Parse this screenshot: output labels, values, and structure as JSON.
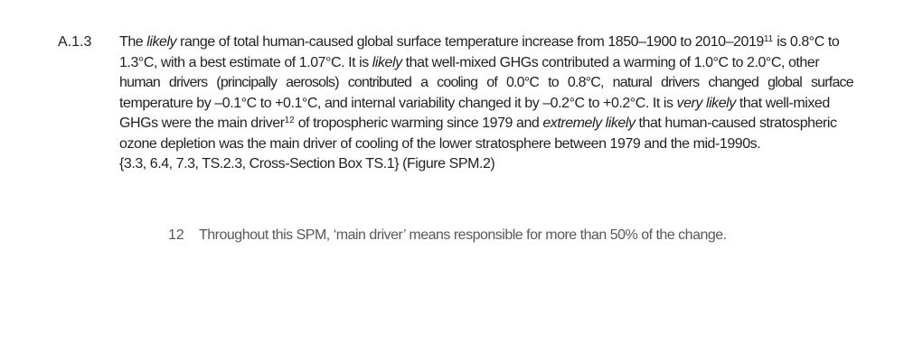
{
  "paragraph": {
    "number": "A.1.3",
    "line1": {
      "a": "The",
      "b_italic": "likely",
      "c": "range of total human-caused global surface temperature increase from 1850–1900 to 2010–2019",
      "sup": "11",
      "d": "is 0.8°C to"
    },
    "line2": {
      "a": "1.3°C, with a best estimate of 1.07°C. It is",
      "b_italic": "likely",
      "c": "that well-mixed GHGs contributed a warming of 1.0°C to 2.0°C, other"
    },
    "line3": "human drivers (principally aerosols) contributed a cooling of 0.0°C to 0.8°C, natural drivers changed global surface",
    "line4": {
      "a": "temperature by –0.1°C to +0.1°C, and internal variability changed it by –0.2°C to +0.2°C. It is",
      "b_italic": "very likely",
      "c": "that well-mixed"
    },
    "line5": {
      "a": "GHGs were the main driver",
      "sup": "12",
      "b": "of tropospheric warming since 1979 and",
      "c_italic": "extremely likely",
      "d": "that human-caused stratospheric"
    },
    "line6": "ozone depletion was the main driver of cooling of the lower stratosphere between 1979 and the mid-1990s.",
    "line7": "{3.3, 6.4, 7.3, TS.2.3, Cross-Section Box TS.1} (Figure SPM.2)"
  },
  "footnote": {
    "number": "12",
    "text": "Throughout this SPM, ‘main driver’ means responsible for more than 50% of the change."
  }
}
